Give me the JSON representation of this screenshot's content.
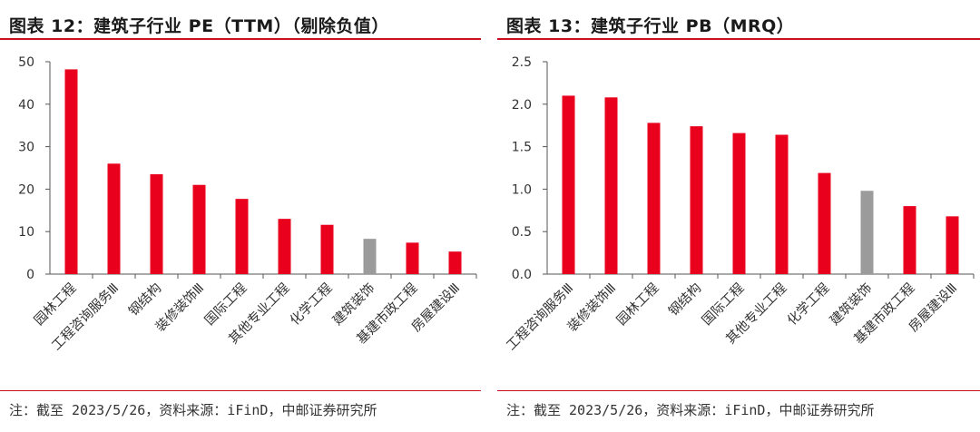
{
  "charts": [
    {
      "title": "图表 12：建筑子行业 PE（TTM）（剔除负值）",
      "source": "注：截至 2023/5/26，资料来源：iFinD，中邮证券研究所"
    },
    {
      "title": "图表 13：建筑子行业 PB（MRQ）",
      "source": "注：截至 2023/5/26，资料来源：iFinD，中邮证券研究所"
    }
  ],
  "colors": {
    "bar": "#e8001c",
    "highlight": "#9b9b9b",
    "accent_rule": "#c8101e",
    "axis": "#555555"
  },
  "chart_data": [
    {
      "type": "bar",
      "title": "图表 12：建筑子行业 PE（TTM）（剔除负值）",
      "xlabel": "",
      "ylabel": "",
      "categories": [
        "园林工程",
        "工程咨询服务Ⅲ",
        "钢结构",
        "装修装饰Ⅲ",
        "国际工程",
        "其他专业工程",
        "化学工程",
        "建筑装饰",
        "基建市政工程",
        "房屋建设Ⅲ"
      ],
      "values": [
        48.2,
        26.0,
        23.5,
        21.0,
        17.7,
        13.0,
        11.6,
        8.3,
        7.4,
        5.3
      ],
      "highlight": "建筑装饰",
      "ylim": [
        0,
        50
      ],
      "yticks": [
        "0",
        "10",
        "20",
        "30",
        "40",
        "50"
      ],
      "ytick_values": [
        0,
        10,
        20,
        30,
        40,
        50
      ],
      "grid": false,
      "legend": "none"
    },
    {
      "type": "bar",
      "title": "图表 13：建筑子行业 PB（MRQ）",
      "xlabel": "",
      "ylabel": "",
      "categories": [
        "工程咨询服务Ⅲ",
        "装修装饰Ⅲ",
        "园林工程",
        "钢结构",
        "国际工程",
        "其他专业工程",
        "化学工程",
        "建筑装饰",
        "基建市政工程",
        "房屋建设Ⅲ"
      ],
      "values": [
        2.1,
        2.08,
        1.78,
        1.74,
        1.66,
        1.64,
        1.19,
        0.98,
        0.8,
        0.68
      ],
      "highlight": "建筑装饰",
      "ylim": [
        0,
        2.5
      ],
      "yticks": [
        "0.0",
        "0.5",
        "1.0",
        "1.5",
        "2.0",
        "2.5"
      ],
      "ytick_values": [
        0,
        0.5,
        1.0,
        1.5,
        2.0,
        2.5
      ],
      "grid": false,
      "legend": "none"
    }
  ]
}
